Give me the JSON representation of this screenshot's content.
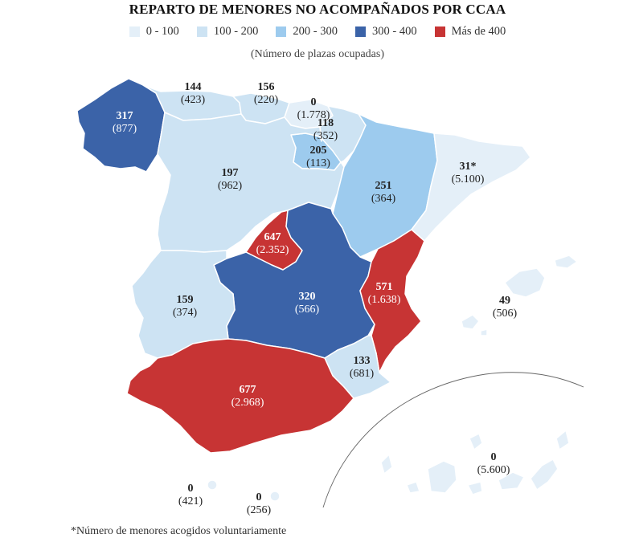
{
  "title": "REPARTO DE MENORES NO ACOMPAÑADOS POR CCAA",
  "subtitle": "(Número de plazas ocupadas)",
  "footnote": "*Número de menores acogidos voluntariamente",
  "legend": [
    {
      "label": "0 - 100",
      "color": "#e4eff8"
    },
    {
      "label": "100 - 200",
      "color": "#cde3f3"
    },
    {
      "label": "200 - 300",
      "color": "#9dcbee"
    },
    {
      "label": "300 - 400",
      "color": "#3b63a8"
    },
    {
      "label": "Más de 400",
      "color": "#c73434"
    }
  ],
  "regions": [
    {
      "id": "galicia",
      "minors": "317",
      "places": "(877)",
      "category": 3
    },
    {
      "id": "asturias",
      "minors": "144",
      "places": "(423)",
      "category": 1
    },
    {
      "id": "cantabria",
      "minors": "156",
      "places": "(220)",
      "category": 1
    },
    {
      "id": "pais-vasco",
      "minors": "0",
      "places": "(1.778)",
      "category": 0
    },
    {
      "id": "navarra",
      "minors": "118",
      "places": "(352)",
      "category": 1
    },
    {
      "id": "la-rioja",
      "minors": "205",
      "places": "(113)",
      "category": 2
    },
    {
      "id": "castilla-y-leon",
      "minors": "197",
      "places": "(962)",
      "category": 1
    },
    {
      "id": "aragon",
      "minors": "251",
      "places": "(364)",
      "category": 2
    },
    {
      "id": "cataluna",
      "minors": "31*",
      "places": "(5.100)",
      "category": 0
    },
    {
      "id": "madrid",
      "minors": "647",
      "places": "(2.352)",
      "category": 4
    },
    {
      "id": "extremadura",
      "minors": "159",
      "places": "(374)",
      "category": 1
    },
    {
      "id": "castilla-la-mancha",
      "minors": "320",
      "places": "(566)",
      "category": 3
    },
    {
      "id": "comunidad-valenciana",
      "minors": "571",
      "places": "(1.638)",
      "category": 4
    },
    {
      "id": "baleares",
      "minors": "49",
      "places": "(506)",
      "category": 0
    },
    {
      "id": "murcia",
      "minors": "133",
      "places": "(681)",
      "category": 1
    },
    {
      "id": "andalucia",
      "minors": "677",
      "places": "(2.968)",
      "category": 4
    },
    {
      "id": "ceuta",
      "minors": "0",
      "places": "(421)",
      "category": 0
    },
    {
      "id": "melilla",
      "minors": "0",
      "places": "(256)",
      "category": 0
    },
    {
      "id": "canarias",
      "minors": "0",
      "places": "(5.600)",
      "category": 0
    }
  ]
}
